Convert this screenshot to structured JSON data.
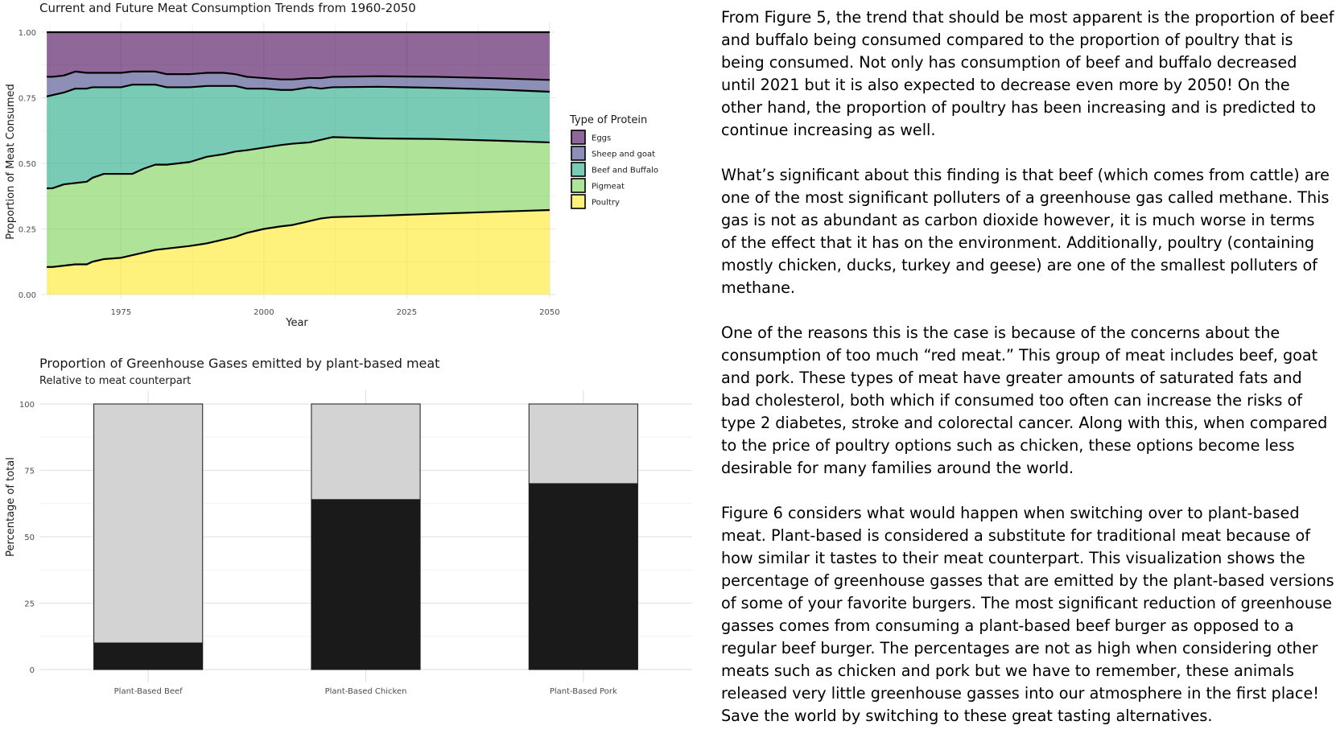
{
  "chart_data": [
    {
      "type": "area",
      "stacked": true,
      "title": "Current and Future Meat Consumption Trends from 1960-2050",
      "xlabel": "Year",
      "ylabel": "Proportion of Meat Consumed",
      "xlim": [
        1962,
        2050
      ],
      "ylim": [
        0,
        1
      ],
      "xticks": [
        "1975",
        "2000",
        "2025",
        "2050"
      ],
      "yticks": [
        "0.00",
        "0.25",
        "0.50",
        "0.75",
        "1.00"
      ],
      "grid": true,
      "legend_title": "Type of Protein",
      "legend_position": "right",
      "x": [
        1962,
        1963,
        1965,
        1967,
        1969,
        1970,
        1972,
        1975,
        1977,
        1979,
        1981,
        1983,
        1985,
        1987,
        1990,
        1993,
        1995,
        1997,
        2000,
        2003,
        2005,
        2008,
        2010,
        2012,
        2020,
        2030,
        2040,
        2050
      ],
      "series": [
        {
          "name": "Poultry",
          "color": "#fde725",
          "values": [
            0.105,
            0.105,
            0.11,
            0.115,
            0.115,
            0.125,
            0.135,
            0.14,
            0.15,
            0.16,
            0.17,
            0.175,
            0.18,
            0.185,
            0.195,
            0.21,
            0.22,
            0.235,
            0.25,
            0.26,
            0.265,
            0.28,
            0.29,
            0.295,
            0.3,
            0.308,
            0.315,
            0.322
          ]
        },
        {
          "name": "Pigmeat",
          "color": "#7ad151",
          "values": [
            0.3,
            0.3,
            0.31,
            0.31,
            0.315,
            0.32,
            0.325,
            0.32,
            0.31,
            0.32,
            0.325,
            0.32,
            0.32,
            0.32,
            0.33,
            0.325,
            0.325,
            0.315,
            0.31,
            0.31,
            0.31,
            0.3,
            0.3,
            0.305,
            0.295,
            0.285,
            0.272,
            0.258
          ]
        },
        {
          "name": "Beef and Buffalo",
          "color": "#22a884",
          "values": [
            0.35,
            0.355,
            0.35,
            0.36,
            0.355,
            0.345,
            0.33,
            0.33,
            0.34,
            0.32,
            0.305,
            0.295,
            0.29,
            0.285,
            0.27,
            0.26,
            0.25,
            0.235,
            0.225,
            0.21,
            0.205,
            0.21,
            0.195,
            0.19,
            0.197,
            0.195,
            0.195,
            0.193
          ]
        },
        {
          "name": "Sheep and goat",
          "color": "#414487",
          "values": [
            0.075,
            0.07,
            0.065,
            0.065,
            0.06,
            0.055,
            0.055,
            0.055,
            0.05,
            0.05,
            0.05,
            0.05,
            0.05,
            0.05,
            0.05,
            0.05,
            0.045,
            0.045,
            0.04,
            0.04,
            0.04,
            0.035,
            0.04,
            0.04,
            0.04,
            0.042,
            0.043,
            0.045
          ]
        },
        {
          "name": "Eggs",
          "color": "#440154",
          "values": [
            0.17,
            0.17,
            0.165,
            0.15,
            0.155,
            0.155,
            0.155,
            0.155,
            0.15,
            0.15,
            0.15,
            0.16,
            0.16,
            0.16,
            0.155,
            0.155,
            0.16,
            0.17,
            0.175,
            0.18,
            0.18,
            0.175,
            0.175,
            0.17,
            0.168,
            0.17,
            0.175,
            0.182
          ]
        }
      ]
    },
    {
      "type": "bar",
      "stacked": true,
      "title": "Proportion of Greenhouse Gases emitted by plant-based meat",
      "subtitle": "Relative to meat counterpart",
      "xlabel": "",
      "ylabel": "Percentage of total",
      "ylim": [
        0,
        100
      ],
      "yticks": [
        "0",
        "25",
        "50",
        "75",
        "100"
      ],
      "grid": true,
      "categories": [
        "Plant-Based Beef",
        "Plant-Based Chicken",
        "Plant-Based Pork"
      ],
      "series": [
        {
          "color": "#1a1a1a",
          "values": [
            10,
            64,
            70
          ]
        },
        {
          "color": "#d3d3d3",
          "values": [
            90,
            36,
            30
          ]
        }
      ]
    }
  ],
  "article": {
    "paragraphs": [
      "From Figure 5, the trend that should be most apparent is the proportion of beef and buffalo being consumed compared to the proportion of poultry that is being consumed. Not only has consumption of beef and buffalo decreased until 2021 but it is also expected to decrease even more by 2050! On the other hand, the proportion of poultry has been increasing and is predicted to continue increasing as well.",
      "What’s significant about this finding is that beef (which comes from cattle) are one of the most significant polluters of a greenhouse gas called methane. This gas is not as abundant as carbon dioxide however, it is much worse in terms of the effect that it has on the environment. Additionally, poultry (containing mostly chicken, ducks, turkey and geese) are one of the smallest polluters of methane.",
      "One of the reasons this is the case is because of the concerns about the consumption of too much “red meat.” This group of meat includes beef, goat and pork. These types of meat have greater amounts of saturated fats and bad cholesterol, both which if consumed too often can increase the risks of type 2 diabetes, stroke and colorectal cancer. Along with this, when compared to the price of poultry options such as chicken, these options become less desirable for many families around the world.",
      "Figure 6 considers what would happen when switching over to plant-based meat. Plant-based is considered a substitute for traditional meat because of how similar it tastes to their meat counterpart. This visualization shows the percentage of greenhouse gasses that are emitted by the plant-based versions of some of your favorite burgers. The most significant reduction of greenhouse gasses comes from consuming a plant-based beef burger as opposed to a regular beef burger. The percentages are not as high when considering other meats such as chicken and pork but we have to remember, these animals released very little greenhouse gasses into our atmosphere in the first place! Save the world by switching to these great tasting alternatives."
    ]
  }
}
